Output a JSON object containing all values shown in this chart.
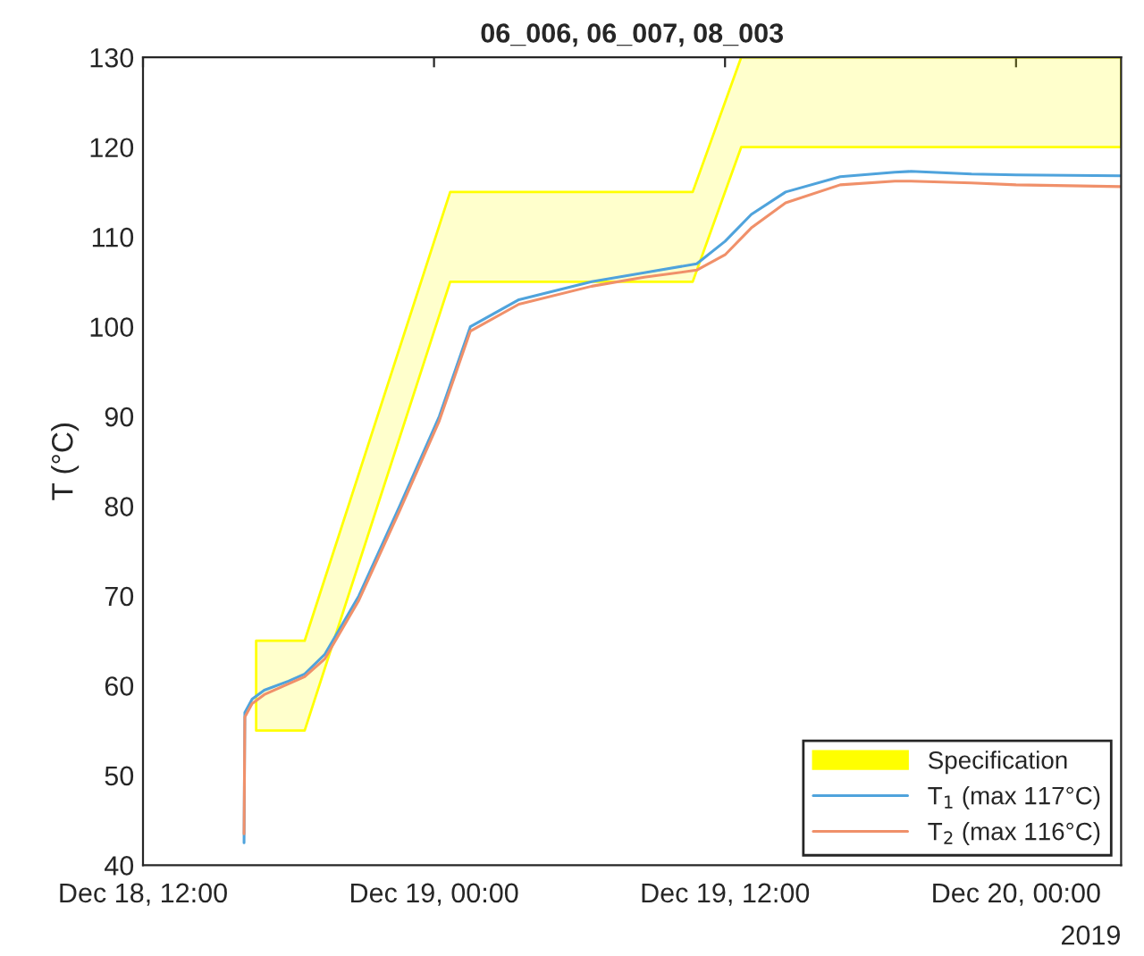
{
  "chart_data": {
    "type": "line",
    "title": "06_006, 06_007, 08_003",
    "ylabel": "T (°C)",
    "annotations": [
      "2019"
    ],
    "xlim": [
      "2019-12-18T12:00",
      "2019-12-20T04:20"
    ],
    "xticks": [
      {
        "value": "2019-12-18T12:00",
        "label": "Dec 18, 12:00"
      },
      {
        "value": "2019-12-19T00:00",
        "label": "Dec 19, 00:00"
      },
      {
        "value": "2019-12-19T12:00",
        "label": "Dec 19, 12:00"
      },
      {
        "value": "2019-12-20T00:00",
        "label": "Dec 20, 00:00"
      }
    ],
    "ylim": [
      40,
      130
    ],
    "yticks": [
      40,
      50,
      60,
      70,
      80,
      90,
      100,
      110,
      120,
      130
    ],
    "grid": false,
    "legend": "bottom right",
    "series": [
      {
        "name": "Specification",
        "type": "area",
        "color": "#ffff00",
        "x": [
          "2019-12-18T16:40",
          "2019-12-18T18:40",
          "2019-12-19T00:40",
          "2019-12-19T10:40",
          "2019-12-19T12:40",
          "2019-12-20T04:20"
        ],
        "values": [
          null,
          null,
          null,
          null,
          null,
          null
        ],
        "lower": [
          55,
          55,
          105,
          105,
          120,
          120
        ],
        "upper": [
          65,
          65,
          115,
          115,
          130,
          130
        ]
      },
      {
        "name": "T$_{1}$ (max 117°C)",
        "color": "#4fa3dc",
        "x": [
          "2019-12-18T16:10",
          "2019-12-18T16:12",
          "2019-12-18T16:30",
          "2019-12-18T17:00",
          "2019-12-18T18:00",
          "2019-12-18T18:40",
          "2019-12-18T19:30",
          "2019-12-18T20:54",
          "2019-12-18T22:35",
          "2019-12-19T00:13",
          "2019-12-19T01:30",
          "2019-12-19T03:30",
          "2019-12-19T06:30",
          "2019-12-19T08:40",
          "2019-12-19T10:50",
          "2019-12-19T12:00",
          "2019-12-19T13:05",
          "2019-12-19T14:30",
          "2019-12-19T16:45",
          "2019-12-19T19:00",
          "2019-12-19T19:40",
          "2019-12-19T22:10",
          "2019-12-20T00:00",
          "2019-12-20T04:20"
        ],
        "values": [
          42.5,
          57,
          58.5,
          59.5,
          60.5,
          61.3,
          63.5,
          70,
          80,
          90,
          100,
          103,
          105,
          106,
          107,
          109.5,
          112.5,
          115,
          116.7,
          117.2,
          117.3,
          117,
          116.9,
          116.8
        ]
      },
      {
        "name": "T$_{2}$ (max 116°C)",
        "color": "#f0906a",
        "x": [
          "2019-12-18T16:10",
          "2019-12-18T16:12",
          "2019-12-18T16:30",
          "2019-12-18T17:00",
          "2019-12-18T18:00",
          "2019-12-18T18:40",
          "2019-12-18T19:30",
          "2019-12-18T20:54",
          "2019-12-18T22:35",
          "2019-12-19T00:13",
          "2019-12-19T01:30",
          "2019-12-19T03:30",
          "2019-12-19T06:30",
          "2019-12-19T08:40",
          "2019-12-19T10:50",
          "2019-12-19T12:00",
          "2019-12-19T13:05",
          "2019-12-19T14:30",
          "2019-12-19T16:45",
          "2019-12-19T19:00",
          "2019-12-19T19:40",
          "2019-12-19T22:10",
          "2019-12-20T00:00",
          "2019-12-20T04:20"
        ],
        "values": [
          43.5,
          56.5,
          58,
          59,
          60.2,
          61,
          63,
          69.5,
          79.5,
          89.5,
          99.5,
          102.5,
          104.5,
          105.5,
          106.3,
          108,
          111,
          113.8,
          115.8,
          116.2,
          116.2,
          116,
          115.8,
          115.6
        ]
      }
    ]
  }
}
